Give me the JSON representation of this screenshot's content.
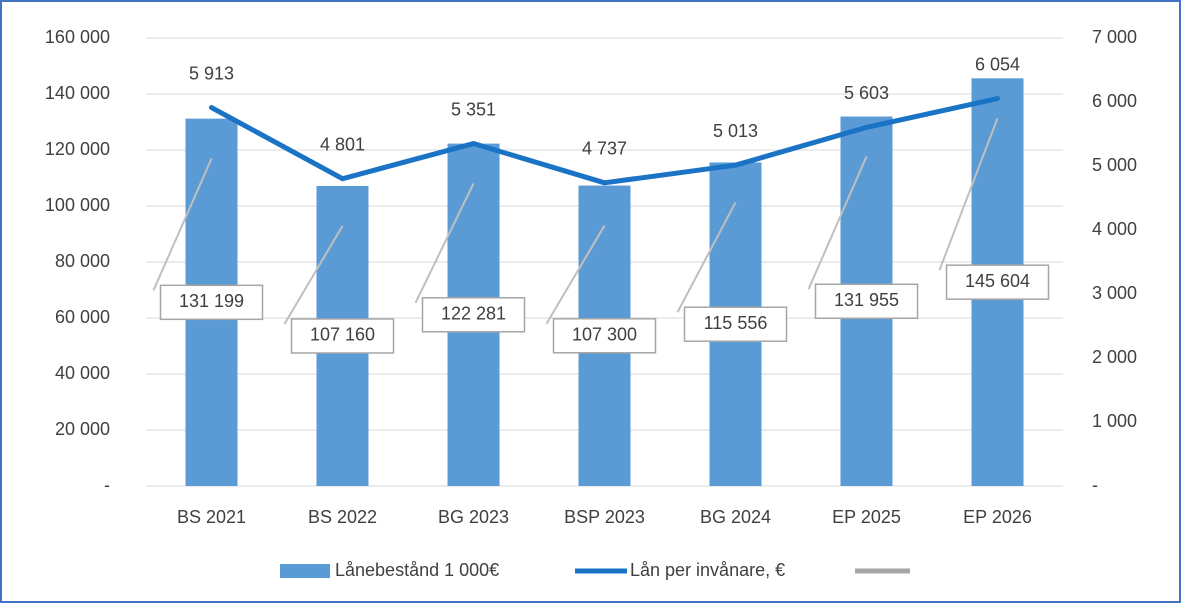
{
  "chart_data": {
    "type": "bar",
    "categories": [
      "BS 2021",
      "BS 2022",
      "BG 2023",
      "BSP 2023",
      "BG 2024",
      "EP 2025",
      "EP 2026"
    ],
    "series": [
      {
        "name": "Lånebestånd 1 000€",
        "color": "#5b9bd5",
        "type": "bar",
        "values": [
          131199,
          107160,
          122281,
          107300,
          115556,
          131955,
          145604
        ],
        "value_labels": [
          "131 199",
          "107 160",
          "122 281",
          "107 300",
          "115 556",
          "131 955",
          "145 604"
        ]
      },
      {
        "name": "Lån per invånare, €",
        "color": "#1a73c4",
        "type": "line",
        "axis": "y2",
        "values": [
          5913,
          4801,
          5351,
          4737,
          5013,
          5603,
          6054
        ],
        "value_labels": [
          "5 913",
          "4 801",
          "5 351",
          "4 737",
          "5 013",
          "5 603",
          "6 054"
        ]
      }
    ],
    "ylim": [
      0,
      160000
    ],
    "yticks": [
      {
        "value": 0,
        "label": "-"
      },
      {
        "value": 20000,
        "label": "20 000"
      },
      {
        "value": 40000,
        "label": "40 000"
      },
      {
        "value": 60000,
        "label": "60 000"
      },
      {
        "value": 80000,
        "label": "80 000"
      },
      {
        "value": 100000,
        "label": "100 000"
      },
      {
        "value": 120000,
        "label": "120 000"
      },
      {
        "value": 140000,
        "label": "140 000"
      },
      {
        "value": 160000,
        "label": "160 000"
      }
    ],
    "y2lim": [
      0,
      7000
    ],
    "y2ticks": [
      {
        "value": 0,
        "label": "-"
      },
      {
        "value": 1000,
        "label": "1 000"
      },
      {
        "value": 2000,
        "label": "2 000"
      },
      {
        "value": 3000,
        "label": "3 000"
      },
      {
        "value": 4000,
        "label": "4 000"
      },
      {
        "value": 5000,
        "label": "5 000"
      },
      {
        "value": 6000,
        "label": "6 000"
      },
      {
        "value": 7000,
        "label": "7 000"
      }
    ],
    "grid": true
  }
}
